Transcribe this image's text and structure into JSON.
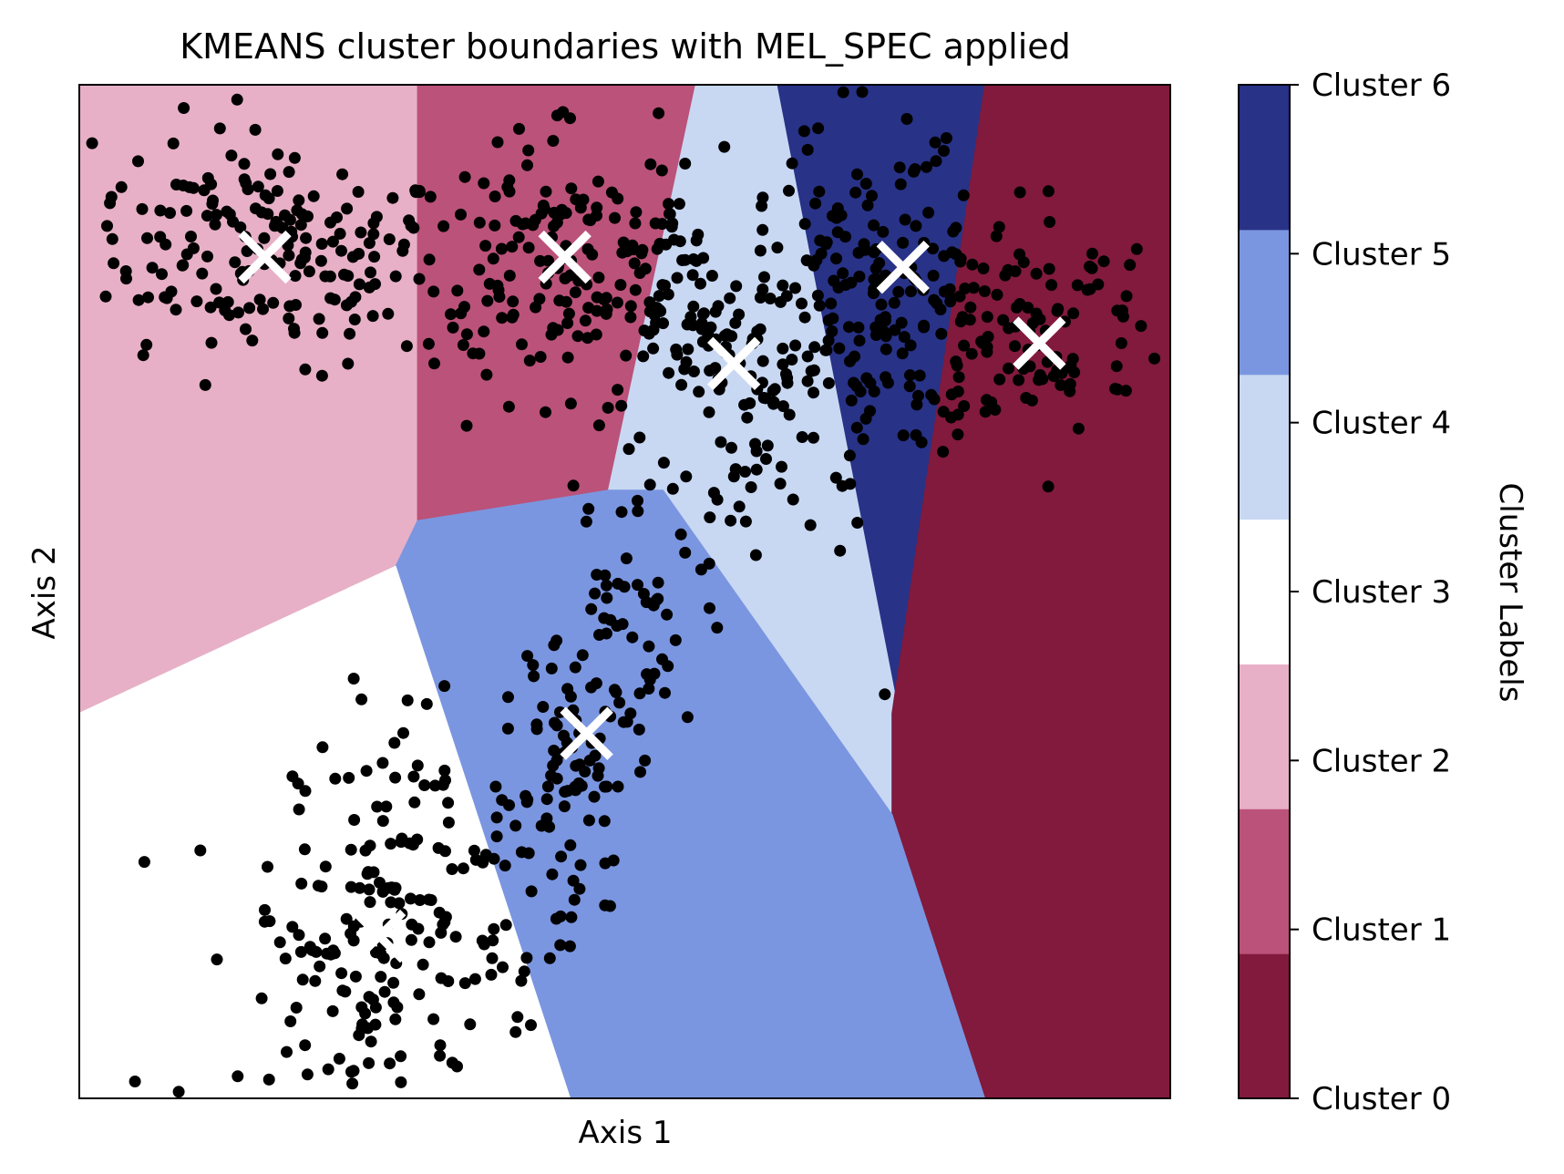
{
  "chart_data": {
    "type": "scatter",
    "title": "KMEANS cluster boundaries with MEL_SPEC applied",
    "xlabel": "Axis 1",
    "ylabel": "Axis 2",
    "xticks": false,
    "yticks": false,
    "xlim": [
      0,
      1
    ],
    "ylim": [
      0,
      1
    ],
    "colorbar": {
      "label": "Cluster Labels",
      "labels": [
        "Cluster 0",
        "Cluster 1",
        "Cluster 2",
        "Cluster 3",
        "Cluster 4",
        "Cluster 5",
        "Cluster 6"
      ],
      "colors": [
        "#811a3c",
        "#bb5279",
        "#e7b0c6",
        "#ffffff",
        "#c8d8f3",
        "#7b96e0",
        "#283287"
      ]
    },
    "regions": [
      {
        "cluster": 2,
        "polygon": [
          [
            0,
            1
          ],
          [
            0.31,
            1
          ],
          [
            0.31,
            0.57
          ],
          [
            0.29,
            0.525
          ],
          [
            0,
            0.38
          ]
        ]
      },
      {
        "cluster": 1,
        "polygon": [
          [
            0.31,
            1
          ],
          [
            0.565,
            1
          ],
          [
            0.485,
            0.6
          ],
          [
            0.31,
            0.57
          ]
        ]
      },
      {
        "cluster": 4,
        "polygon": [
          [
            0.565,
            1
          ],
          [
            0.64,
            1
          ],
          [
            0.75,
            0.39
          ],
          [
            0.745,
            0.28
          ],
          [
            0.535,
            0.6
          ],
          [
            0.485,
            0.6
          ]
        ]
      },
      {
        "cluster": 6,
        "polygon": [
          [
            0.64,
            1
          ],
          [
            0.83,
            1
          ],
          [
            0.745,
            0.38
          ],
          [
            0.745,
            0.28
          ],
          [
            0.75,
            0.39
          ]
        ]
      },
      {
        "cluster": 0,
        "polygon": [
          [
            0.83,
            1
          ],
          [
            1,
            1
          ],
          [
            1,
            0
          ],
          [
            0.83,
            0
          ],
          [
            0.745,
            0.28
          ],
          [
            0.745,
            0.38
          ]
        ]
      },
      {
        "cluster": 5,
        "polygon": [
          [
            0.485,
            0.6
          ],
          [
            0.535,
            0.6
          ],
          [
            0.745,
            0.28
          ],
          [
            0.83,
            0
          ],
          [
            0.45,
            0
          ],
          [
            0.29,
            0.525
          ],
          [
            0.31,
            0.57
          ]
        ]
      },
      {
        "cluster": 3,
        "polygon": [
          [
            0,
            0.38
          ],
          [
            0.29,
            0.525
          ],
          [
            0.45,
            0
          ],
          [
            0,
            0
          ]
        ]
      }
    ],
    "centroids": [
      {
        "cluster": 2,
        "x": 0.17,
        "y": 0.83
      },
      {
        "cluster": 1,
        "x": 0.445,
        "y": 0.83
      },
      {
        "cluster": 6,
        "x": 0.755,
        "y": 0.82
      },
      {
        "cluster": 4,
        "x": 0.6,
        "y": 0.725
      },
      {
        "cluster": 0,
        "x": 0.88,
        "y": 0.745
      },
      {
        "cluster": 5,
        "x": 0.465,
        "y": 0.36
      },
      {
        "cluster": 3,
        "x": 0.275,
        "y": 0.16
      }
    ],
    "point_groups": [
      {
        "cluster": 2,
        "cx": 0.17,
        "cy": 0.84,
        "sx": 0.085,
        "sy": 0.055,
        "n": 190,
        "rot": -0.2
      },
      {
        "cluster": 1,
        "cx": 0.44,
        "cy": 0.82,
        "sx": 0.07,
        "sy": 0.06,
        "n": 150,
        "rot": 0.4
      },
      {
        "cluster": 6,
        "cx": 0.74,
        "cy": 0.8,
        "sx": 0.06,
        "sy": 0.08,
        "n": 160,
        "rot": 0.3
      },
      {
        "cluster": 4,
        "cx": 0.59,
        "cy": 0.73,
        "sx": 0.05,
        "sy": 0.09,
        "n": 150,
        "rot": 0.5
      },
      {
        "cluster": 0,
        "cx": 0.87,
        "cy": 0.76,
        "sx": 0.07,
        "sy": 0.055,
        "n": 110,
        "rot": 0.2
      },
      {
        "cluster": 5,
        "cx": 0.46,
        "cy": 0.35,
        "sx": 0.035,
        "sy": 0.15,
        "n": 170,
        "rot": -0.35
      },
      {
        "cluster": 3,
        "cx": 0.27,
        "cy": 0.15,
        "sx": 0.06,
        "sy": 0.11,
        "n": 200,
        "rot": -0.3
      }
    ]
  }
}
